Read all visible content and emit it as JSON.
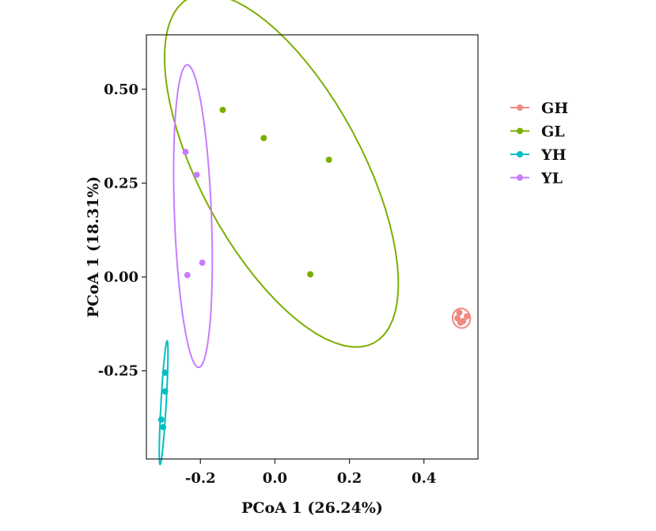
{
  "chart_data": {
    "type": "scatter",
    "title": "",
    "xlabel": "PCoA 1 (26.24%)",
    "ylabel": "PCoA 1 (18.31%)",
    "xlim": [
      -0.345,
      0.545
    ],
    "ylim": [
      -0.485,
      0.645
    ],
    "x_ticks": [
      -0.2,
      0.0,
      0.2,
      0.4
    ],
    "x_tick_labels": [
      "-0.2",
      "0.0",
      "0.2",
      "0.4"
    ],
    "y_ticks": [
      -0.25,
      0.0,
      0.25,
      0.5
    ],
    "y_tick_labels": [
      "-0.25",
      "0.00",
      "0.25",
      "0.50"
    ],
    "grid": false,
    "legend_position": "right",
    "ellipses": true,
    "series": [
      {
        "name": "GH",
        "color": "#f08a80",
        "points": [
          [
            0.495,
            -0.095
          ],
          [
            0.515,
            -0.105
          ],
          [
            0.498,
            -0.122
          ],
          [
            0.505,
            -0.118
          ],
          [
            0.49,
            -0.11
          ]
        ]
      },
      {
        "name": "GL",
        "color": "#7cae00",
        "points": [
          [
            -0.14,
            0.445
          ],
          [
            -0.03,
            0.37
          ],
          [
            0.145,
            0.312
          ],
          [
            0.095,
            0.007
          ]
        ]
      },
      {
        "name": "YH",
        "color": "#00bfc4",
        "points": [
          [
            -0.295,
            -0.255
          ],
          [
            -0.295,
            -0.305
          ],
          [
            -0.305,
            -0.38
          ],
          [
            -0.3,
            -0.4
          ]
        ]
      },
      {
        "name": "YL",
        "color": "#c77cff",
        "points": [
          [
            -0.24,
            0.333
          ],
          [
            -0.21,
            0.272
          ],
          [
            -0.195,
            0.038
          ],
          [
            -0.235,
            0.005
          ]
        ]
      }
    ]
  }
}
